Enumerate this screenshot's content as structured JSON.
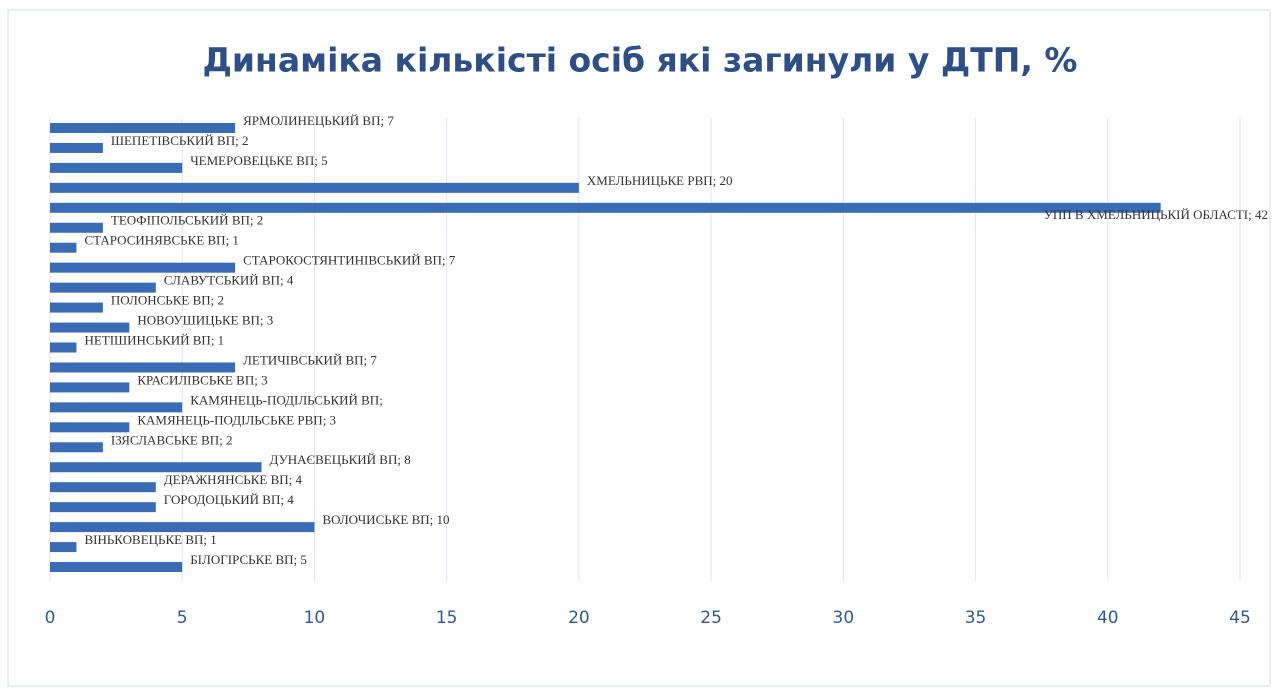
{
  "chart_data": {
    "type": "barh",
    "title": "Динаміка кількісті осіб які загинули у ДТП, %",
    "values": [
      7,
      2,
      5,
      20,
      42,
      2,
      1,
      7,
      4,
      2,
      3,
      1,
      7,
      3,
      5,
      3,
      2,
      8,
      4,
      4,
      10,
      1,
      5
    ],
    "value_labels": [
      "ЯРМОЛИНЕЦЬКИЙ ВП; 7",
      "ШЕПЕТІВСЬКИЙ ВП; 2",
      "ЧЕМЕРОВЕЦЬКЕ ВП; 5",
      "ХМЕЛЬНИЦЬКЕ РВП; 20",
      "УПП В ХМЕЛЬНИЦЬКІЙ ОБЛАСТІ; 42",
      "ТЕОФІПОЛЬСЬКИЙ ВП; 2",
      "СТАРОСИНЯВСЬКЕ ВП; 1",
      "СТАРОКОСТЯНТИНІВСЬКИЙ ВП; 7",
      "СЛАВУТСЬКИЙ ВП; 4",
      "ПОЛОНСЬКЕ ВП; 2",
      "НОВОУШИЦЬКЕ ВП; 3",
      "НЕТІШИНСЬКИЙ ВП; 1",
      "ЛЕТИЧІВСЬКИЙ ВП; 7",
      "КРАСИЛІВСЬКЕ ВП; 3",
      "КАМЯНЕЦЬ-ПОДІЛЬСЬКИЙ ВП;",
      "КАМЯНЕЦЬ-ПОДІЛЬСЬКЕ РВП; 3",
      "ІЗЯСЛАВСЬКЕ ВП; 2",
      "ДУНАЄВЕЦЬКИЙ ВП; 8",
      "ДЕРАЖНЯНСЬКЕ ВП; 4",
      "ГОРОДОЦЬКИЙ ВП; 4",
      "ВОЛОЧИСЬКЕ ВП; 10",
      "ВІНЬКОВЕЦЬКЕ ВП; 1",
      "БІЛОГІРСЬКЕ ВП; 5"
    ],
    "color": "#3a6cb5",
    "xlim": [
      0,
      45
    ],
    "xticks": [
      0,
      5,
      10,
      15,
      20,
      25,
      30,
      35,
      40,
      45
    ],
    "grid": true
  }
}
